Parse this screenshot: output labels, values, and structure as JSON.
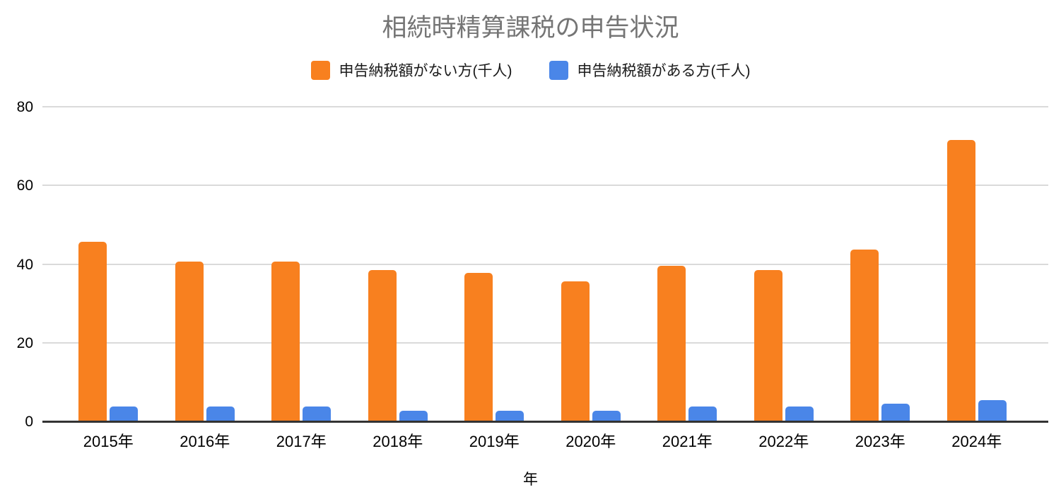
{
  "chart_data": {
    "type": "bar",
    "title": "相続時精算課税の申告状況",
    "title_color": "#757575",
    "categories": [
      "2015年",
      "2016年",
      "2017年",
      "2018年",
      "2019年",
      "2020年",
      "2021年",
      "2022年",
      "2023年",
      "2024年"
    ],
    "series": [
      {
        "key": "no-tax",
        "name": "申告納税額がない方(千人)",
        "color": "#F8801F",
        "values": [
          45.9,
          40.9,
          40.9,
          38.7,
          38.0,
          35.8,
          39.7,
          38.7,
          43.8,
          71.8
        ]
      },
      {
        "key": "has-tax",
        "name": "申告納税額がある方(千人)",
        "color": "#4A86E8",
        "values": [
          3.9,
          3.9,
          3.9,
          2.9,
          2.9,
          2.8,
          3.9,
          3.9,
          4.6,
          5.6
        ]
      }
    ],
    "xlabel": "年",
    "ylabel": "",
    "ylim": [
      0,
      80
    ],
    "yticks": [
      0,
      20,
      40,
      60,
      80
    ],
    "grid": true,
    "legend_position": "top",
    "gridline_color": "#dadada",
    "baseline_color": "#333333"
  }
}
